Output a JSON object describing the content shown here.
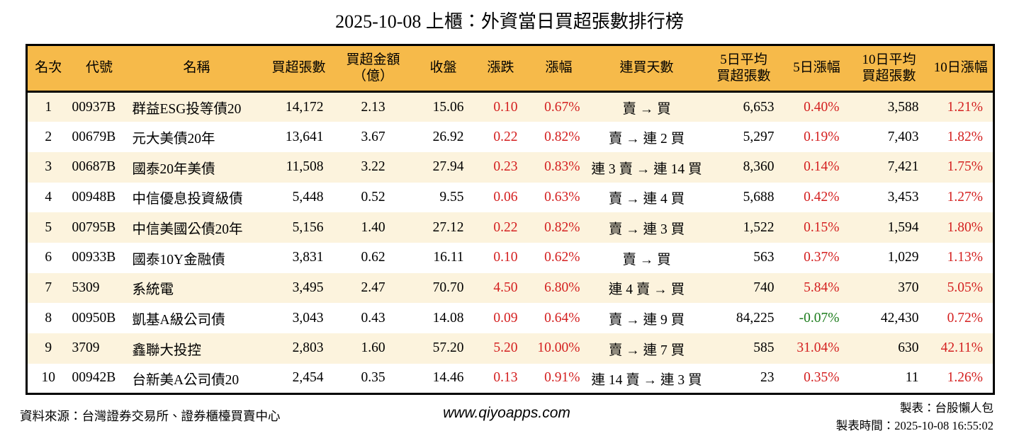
{
  "colors": {
    "header_bg": "#f6ba4a",
    "row_alt_bg": "#fcf3dd",
    "up_red": "#d42020",
    "down_green": "#1e7d1e",
    "border_color": "#000000"
  },
  "chart_data": {
    "type": "table",
    "title": "2025-10-08 上櫃：外資當日買超張數排行榜",
    "columns": [
      {
        "key": "rank",
        "label": "名次",
        "lines": [
          "名次"
        ]
      },
      {
        "key": "code",
        "label": "代號",
        "lines": [
          "代號"
        ]
      },
      {
        "key": "name",
        "label": "名稱",
        "lines": [
          "名稱"
        ]
      },
      {
        "key": "buy_volume",
        "label": "買超張數",
        "lines": [
          "買超張數"
        ]
      },
      {
        "key": "buy_amount",
        "label": "買超金額（億）",
        "lines": [
          "買超金額",
          "（億）"
        ]
      },
      {
        "key": "close",
        "label": "收盤",
        "lines": [
          "收盤"
        ]
      },
      {
        "key": "change",
        "label": "漲跌",
        "lines": [
          "漲跌"
        ]
      },
      {
        "key": "change_pct",
        "label": "漲幅",
        "lines": [
          "漲幅"
        ]
      },
      {
        "key": "streak",
        "label": "連買天數",
        "lines": [
          "連買天數"
        ]
      },
      {
        "key": "avg5_volume",
        "label": "5日平均買超張數",
        "lines": [
          "5日平均",
          "買超張數"
        ]
      },
      {
        "key": "pct5",
        "label": "5日漲幅",
        "lines": [
          "5日漲幅"
        ]
      },
      {
        "key": "avg10_volume",
        "label": "10日平均買超張數",
        "lines": [
          "10日平均",
          "買超張數"
        ]
      },
      {
        "key": "pct10",
        "label": "10日漲幅",
        "lines": [
          "10日漲幅"
        ]
      }
    ],
    "rows": [
      {
        "rank": "1",
        "code": "00937B",
        "name": "群益ESG投等債20",
        "buy_volume": "14,172",
        "buy_amount": "2.13",
        "close": "15.06",
        "change": "0.10",
        "change_pct": "0.67%",
        "streak": "賣 → 買",
        "avg5_volume": "6,653",
        "pct5": "0.40%",
        "avg10_volume": "3,588",
        "pct10": "1.21%"
      },
      {
        "rank": "2",
        "code": "00679B",
        "name": "元大美債20年",
        "buy_volume": "13,641",
        "buy_amount": "3.67",
        "close": "26.92",
        "change": "0.22",
        "change_pct": "0.82%",
        "streak": "賣 → 連 2 買",
        "avg5_volume": "5,297",
        "pct5": "0.19%",
        "avg10_volume": "7,403",
        "pct10": "1.82%"
      },
      {
        "rank": "3",
        "code": "00687B",
        "name": "國泰20年美債",
        "buy_volume": "11,508",
        "buy_amount": "3.22",
        "close": "27.94",
        "change": "0.23",
        "change_pct": "0.83%",
        "streak": "連 3 賣 → 連 14 買",
        "avg5_volume": "8,360",
        "pct5": "0.14%",
        "avg10_volume": "7,421",
        "pct10": "1.75%"
      },
      {
        "rank": "4",
        "code": "00948B",
        "name": "中信優息投資級債",
        "buy_volume": "5,448",
        "buy_amount": "0.52",
        "close": "9.55",
        "change": "0.06",
        "change_pct": "0.63%",
        "streak": "賣 → 連 4 買",
        "avg5_volume": "5,688",
        "pct5": "0.42%",
        "avg10_volume": "3,453",
        "pct10": "1.27%"
      },
      {
        "rank": "5",
        "code": "00795B",
        "name": "中信美國公債20年",
        "buy_volume": "5,156",
        "buy_amount": "1.40",
        "close": "27.12",
        "change": "0.22",
        "change_pct": "0.82%",
        "streak": "賣 → 連 3 買",
        "avg5_volume": "1,522",
        "pct5": "0.15%",
        "avg10_volume": "1,594",
        "pct10": "1.80%"
      },
      {
        "rank": "6",
        "code": "00933B",
        "name": "國泰10Y金融債",
        "buy_volume": "3,831",
        "buy_amount": "0.62",
        "close": "16.11",
        "change": "0.10",
        "change_pct": "0.62%",
        "streak": "賣 → 買",
        "avg5_volume": "563",
        "pct5": "0.37%",
        "avg10_volume": "1,029",
        "pct10": "1.13%"
      },
      {
        "rank": "7",
        "code": "5309",
        "name": "系統電",
        "buy_volume": "3,495",
        "buy_amount": "2.47",
        "close": "70.70",
        "change": "4.50",
        "change_pct": "6.80%",
        "streak": "連 4 賣 → 買",
        "avg5_volume": "740",
        "pct5": "5.84%",
        "avg10_volume": "370",
        "pct10": "5.05%"
      },
      {
        "rank": "8",
        "code": "00950B",
        "name": "凱基A級公司債",
        "buy_volume": "3,043",
        "buy_amount": "0.43",
        "close": "14.08",
        "change": "0.09",
        "change_pct": "0.64%",
        "streak": "賣 → 連 9 買",
        "avg5_volume": "84,225",
        "pct5": "-0.07%",
        "avg10_volume": "42,430",
        "pct10": "0.72%"
      },
      {
        "rank": "9",
        "code": "3709",
        "name": "鑫聯大投控",
        "buy_volume": "2,803",
        "buy_amount": "1.60",
        "close": "57.20",
        "change": "5.20",
        "change_pct": "10.00%",
        "streak": "賣 → 連 7 買",
        "avg5_volume": "585",
        "pct5": "31.04%",
        "avg10_volume": "630",
        "pct10": "42.11%"
      },
      {
        "rank": "10",
        "code": "00942B",
        "name": "台新美A公司債20",
        "buy_volume": "2,454",
        "buy_amount": "0.35",
        "close": "14.46",
        "change": "0.13",
        "change_pct": "0.91%",
        "streak": "連 14 賣 → 連 3 買",
        "avg5_volume": "23",
        "pct5": "0.35%",
        "avg10_volume": "11",
        "pct10": "1.26%"
      }
    ]
  },
  "footer": {
    "source": "資料來源：台灣證券交易所、證券櫃檯買賣中心",
    "website": "www.qiyoapps.com",
    "author": "製表：台股懶人包",
    "timestamp": "製表時間：2025-10-08 16:55:02"
  }
}
